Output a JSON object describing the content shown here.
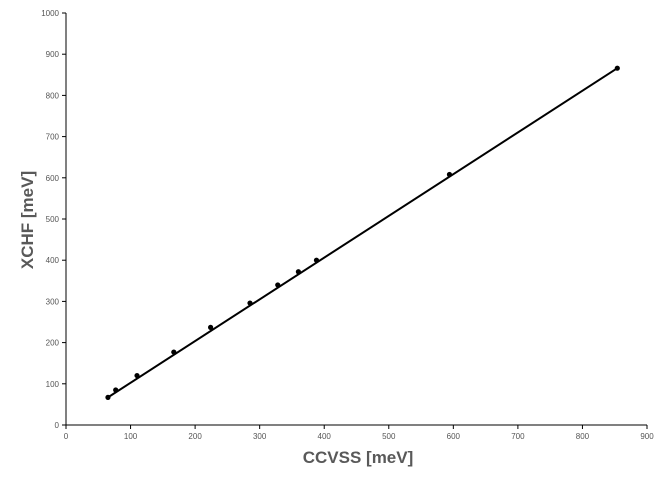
{
  "chart_data": {
    "type": "scatter",
    "title": "",
    "xlabel": "CCVSS [meV]",
    "ylabel": "XCHF [meV]",
    "xlim": [
      0,
      900
    ],
    "ylim": [
      0,
      1000
    ],
    "x_ticks": [
      0,
      100,
      200,
      300,
      400,
      500,
      600,
      700,
      800,
      900
    ],
    "y_ticks": [
      0,
      100,
      200,
      300,
      400,
      500,
      600,
      700,
      800,
      900,
      1000
    ],
    "grid": false,
    "legend": "none",
    "series": [
      {
        "points": [
          {
            "x": 65,
            "y": 67
          },
          {
            "x": 77,
            "y": 85
          },
          {
            "x": 110,
            "y": 120
          },
          {
            "x": 167,
            "y": 177
          },
          {
            "x": 224,
            "y": 237
          },
          {
            "x": 285,
            "y": 296
          },
          {
            "x": 328,
            "y": 340
          },
          {
            "x": 360,
            "y": 372
          },
          {
            "x": 388,
            "y": 400
          },
          {
            "x": 594,
            "y": 608
          },
          {
            "x": 854,
            "y": 866
          }
        ]
      }
    ],
    "trendline": {
      "x": [
        65,
        854
      ],
      "y": [
        67,
        866
      ]
    },
    "colors": {
      "line": "#000000",
      "marker": "#000000",
      "axis": "#000000",
      "text": "#555555",
      "title": "#595959"
    }
  }
}
